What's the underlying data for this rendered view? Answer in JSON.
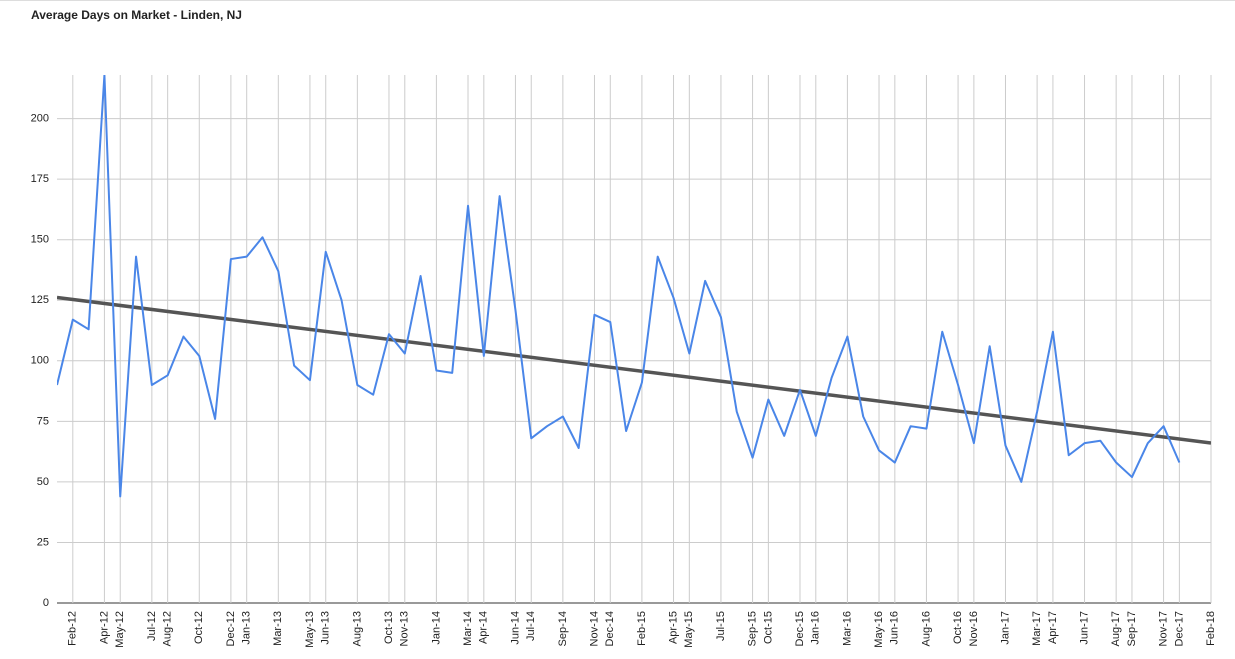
{
  "chart_data": {
    "type": "line",
    "title": "Average Days on Market - Linden, NJ",
    "x": [
      "Jan-12",
      "Feb-12",
      "Mar-12",
      "Apr-12",
      "May-12",
      "Jun-12",
      "Jul-12",
      "Aug-12",
      "Sep-12",
      "Oct-12",
      "Nov-12",
      "Dec-12",
      "Jan-13",
      "Feb-13",
      "Mar-13",
      "Apr-13",
      "May-13",
      "Jun-13",
      "Jul-13",
      "Aug-13",
      "Sep-13",
      "Oct-13",
      "Nov-13",
      "Dec-13",
      "Jan-14",
      "Feb-14",
      "Mar-14",
      "Apr-14",
      "May-14",
      "Jun-14",
      "Jul-14",
      "Aug-14",
      "Sep-14",
      "Oct-14",
      "Nov-14",
      "Dec-14",
      "Jan-15",
      "Feb-15",
      "Mar-15",
      "Apr-15",
      "May-15",
      "Jun-15",
      "Jul-15",
      "Aug-15",
      "Sep-15",
      "Oct-15",
      "Nov-15",
      "Dec-15",
      "Jan-16",
      "Feb-16",
      "Mar-16",
      "Apr-16",
      "May-16",
      "Jun-16",
      "Jul-16",
      "Aug-16",
      "Sep-16",
      "Oct-16",
      "Nov-16",
      "Dec-16",
      "Jan-17",
      "Feb-17",
      "Mar-17",
      "Apr-17",
      "May-17",
      "Jun-17",
      "Jul-17",
      "Aug-17",
      "Sep-17",
      "Oct-17",
      "Nov-17",
      "Dec-17"
    ],
    "values": [
      90,
      117,
      113,
      218,
      44,
      143,
      90,
      94,
      110,
      102,
      76,
      142,
      143,
      151,
      137,
      98,
      92,
      145,
      125,
      90,
      86,
      111,
      103,
      135,
      96,
      95,
      164,
      102,
      168,
      121,
      68,
      73,
      77,
      64,
      119,
      116,
      71,
      91,
      143,
      126,
      103,
      133,
      118,
      79,
      60,
      84,
      69,
      88,
      69,
      93,
      110,
      77,
      63,
      58,
      73,
      72,
      112,
      90,
      66,
      106,
      65,
      50,
      79,
      112,
      61,
      66,
      67,
      58,
      52,
      66,
      73,
      58
    ],
    "color": "#4a86e8",
    "trendline": true,
    "trendline_color": "#555555",
    "xlim": [
      "Jan-12",
      "Feb-18"
    ],
    "xticks": [
      "Feb-12",
      "Apr-12",
      "May-12",
      "Jul-12",
      "Aug-12",
      "Oct-12",
      "Dec-12",
      "Jan-13",
      "Mar-13",
      "May-13",
      "Jun-13",
      "Aug-13",
      "Oct-13",
      "Nov-13",
      "Jan-14",
      "Mar-14",
      "Apr-14",
      "Jun-14",
      "Jul-14",
      "Sep-14",
      "Nov-14",
      "Dec-14",
      "Feb-15",
      "Apr-15",
      "May-15",
      "Jul-15",
      "Sep-15",
      "Oct-15",
      "Dec-15",
      "Jan-16",
      "Mar-16",
      "May-16",
      "Jun-16",
      "Aug-16",
      "Oct-16",
      "Nov-16",
      "Jan-17",
      "Mar-17",
      "Apr-17",
      "Jun-17",
      "Aug-17",
      "Sep-17",
      "Nov-17",
      "Dec-17",
      "Feb-18"
    ],
    "ylim": [
      0,
      218
    ],
    "yticks": [
      0,
      25,
      50,
      75,
      100,
      125,
      150,
      175,
      200
    ],
    "grid": true
  }
}
